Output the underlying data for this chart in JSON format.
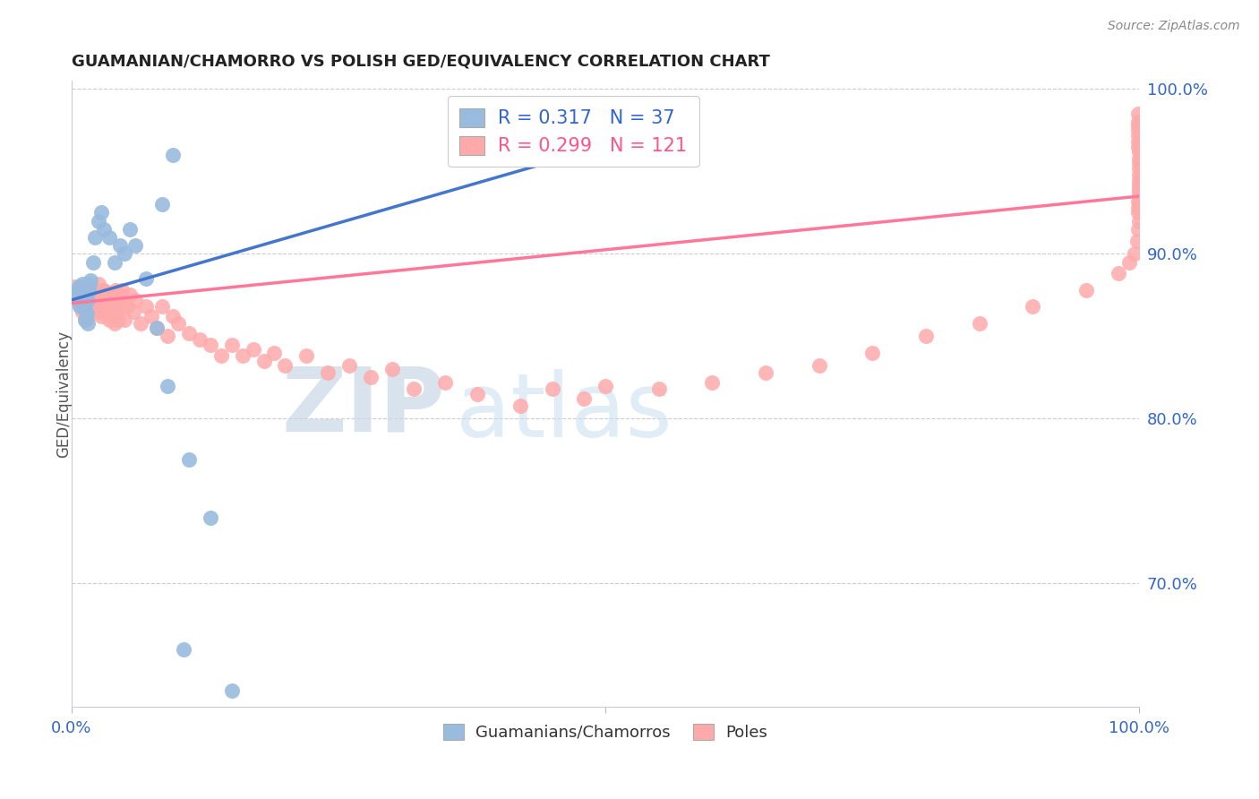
{
  "title": "GUAMANIAN/CHAMORRO VS POLISH GED/EQUIVALENCY CORRELATION CHART",
  "source": "Source: ZipAtlas.com",
  "ylabel": "GED/Equivalency",
  "legend_label1": "Guamanians/Chamorros",
  "legend_label2": "Poles",
  "r1": "0.317",
  "n1": "37",
  "r2": "0.299",
  "n2": "121",
  "color_blue": "#99BBDD",
  "color_pink": "#FFAAAA",
  "color_blue_line": "#4477CC",
  "color_pink_line": "#FF7799",
  "color_blue_text": "#3366CC",
  "color_pink_text": "#FF5588",
  "watermark_zip": "ZIP",
  "watermark_atlas": "atlas",
  "blue_x": [
    0.005,
    0.006,
    0.007,
    0.008,
    0.009,
    0.01,
    0.01,
    0.011,
    0.012,
    0.013,
    0.013,
    0.014,
    0.015,
    0.015,
    0.016,
    0.017,
    0.018,
    0.02,
    0.022,
    0.025,
    0.028,
    0.03,
    0.035,
    0.04,
    0.045,
    0.05,
    0.055,
    0.06,
    0.07,
    0.08,
    0.09,
    0.11,
    0.13,
    0.085,
    0.095,
    0.105,
    0.15
  ],
  "blue_y": [
    0.875,
    0.878,
    0.88,
    0.868,
    0.872,
    0.876,
    0.882,
    0.87,
    0.874,
    0.86,
    0.866,
    0.864,
    0.858,
    0.872,
    0.878,
    0.882,
    0.884,
    0.895,
    0.91,
    0.92,
    0.925,
    0.915,
    0.91,
    0.895,
    0.905,
    0.9,
    0.915,
    0.905,
    0.885,
    0.855,
    0.82,
    0.775,
    0.74,
    0.93,
    0.96,
    0.66,
    0.635
  ],
  "pink_x": [
    0.003,
    0.005,
    0.006,
    0.007,
    0.008,
    0.009,
    0.01,
    0.01,
    0.011,
    0.012,
    0.013,
    0.014,
    0.015,
    0.015,
    0.016,
    0.017,
    0.018,
    0.019,
    0.02,
    0.02,
    0.021,
    0.022,
    0.023,
    0.024,
    0.025,
    0.025,
    0.026,
    0.027,
    0.028,
    0.029,
    0.03,
    0.03,
    0.031,
    0.032,
    0.033,
    0.034,
    0.035,
    0.036,
    0.037,
    0.038,
    0.039,
    0.04,
    0.04,
    0.041,
    0.042,
    0.043,
    0.044,
    0.045,
    0.046,
    0.047,
    0.05,
    0.052,
    0.055,
    0.058,
    0.06,
    0.065,
    0.07,
    0.075,
    0.08,
    0.085,
    0.09,
    0.095,
    0.1,
    0.11,
    0.12,
    0.13,
    0.14,
    0.15,
    0.16,
    0.17,
    0.18,
    0.19,
    0.2,
    0.22,
    0.24,
    0.26,
    0.28,
    0.3,
    0.32,
    0.35,
    0.38,
    0.42,
    0.45,
    0.48,
    0.5,
    0.55,
    0.6,
    0.65,
    0.7,
    0.75,
    0.8,
    0.85,
    0.9,
    0.95,
    0.98,
    0.99,
    0.995,
    0.998,
    0.999,
    1.0,
    0.999,
    0.999,
    1.0,
    1.0,
    0.999,
    1.0,
    1.0,
    1.0,
    1.0,
    1.0,
    1.0,
    1.0,
    1.0,
    1.0,
    0.999,
    0.999,
    0.999,
    0.999,
    0.999,
    0.999,
    0.999
  ],
  "pink_y": [
    0.88,
    0.875,
    0.872,
    0.877,
    0.87,
    0.873,
    0.865,
    0.878,
    0.868,
    0.874,
    0.86,
    0.866,
    0.862,
    0.875,
    0.87,
    0.878,
    0.872,
    0.868,
    0.865,
    0.878,
    0.874,
    0.87,
    0.866,
    0.875,
    0.87,
    0.882,
    0.865,
    0.874,
    0.862,
    0.878,
    0.865,
    0.878,
    0.872,
    0.866,
    0.87,
    0.876,
    0.86,
    0.875,
    0.87,
    0.865,
    0.874,
    0.858,
    0.872,
    0.878,
    0.865,
    0.872,
    0.86,
    0.875,
    0.868,
    0.878,
    0.86,
    0.868,
    0.875,
    0.865,
    0.872,
    0.858,
    0.868,
    0.862,
    0.855,
    0.868,
    0.85,
    0.862,
    0.858,
    0.852,
    0.848,
    0.845,
    0.838,
    0.845,
    0.838,
    0.842,
    0.835,
    0.84,
    0.832,
    0.838,
    0.828,
    0.832,
    0.825,
    0.83,
    0.818,
    0.822,
    0.815,
    0.808,
    0.818,
    0.812,
    0.82,
    0.818,
    0.822,
    0.828,
    0.832,
    0.84,
    0.85,
    0.858,
    0.868,
    0.878,
    0.888,
    0.895,
    0.9,
    0.908,
    0.915,
    0.92,
    0.925,
    0.928,
    0.93,
    0.935,
    0.932,
    0.938,
    0.94,
    0.942,
    0.945,
    0.948,
    0.952,
    0.955,
    0.958,
    0.962,
    0.965,
    0.968,
    0.972,
    0.975,
    0.978,
    0.98,
    0.985
  ],
  "blue_line_x0": 0.0,
  "blue_line_x1": 0.46,
  "blue_line_y0": 0.872,
  "blue_line_y1": 0.958,
  "pink_line_x0": 0.0,
  "pink_line_x1": 1.0,
  "pink_line_y0": 0.87,
  "pink_line_y1": 0.935,
  "xlim": [
    0.0,
    1.0
  ],
  "ylim": [
    0.625,
    1.005
  ],
  "yticks": [
    0.7,
    0.8,
    0.9,
    1.0
  ],
  "ytick_labels": [
    "70.0%",
    "80.0%",
    "90.0%",
    "100.0%"
  ],
  "xtick_labels_left": "0.0%",
  "xtick_labels_right": "100.0%"
}
